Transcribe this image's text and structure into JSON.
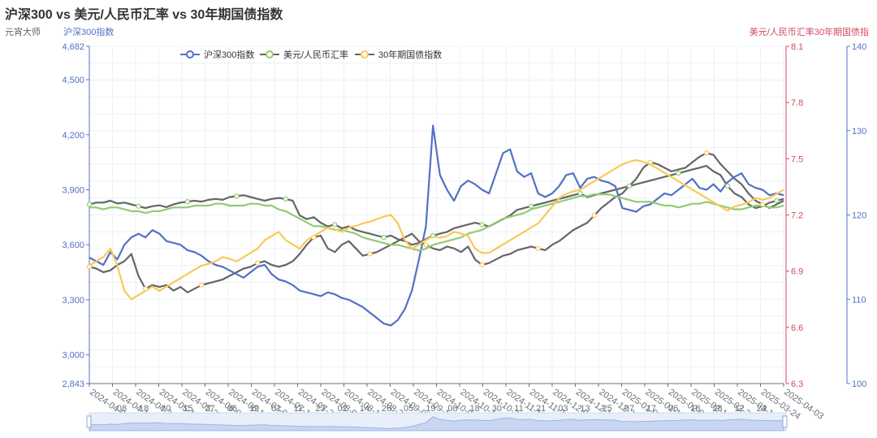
{
  "chart_data": {
    "type": "line",
    "title": "沪深300 vs 美元/人民币汇率 vs 30年期国债指数",
    "source_label": "元宵大师",
    "left_axis_name": "沪深300指数",
    "right_axis_name": "美元/人民币汇率30年期国债指",
    "legend": [
      "沪深300指数",
      "美元/人民币汇率",
      "30年期国债指数"
    ],
    "legend_position": "top-center",
    "grid": true,
    "y_left": {
      "min": 2843,
      "max": 4682,
      "ticks": [
        "2,843",
        "3,000",
        "3,300",
        "3,600",
        "3,900",
        "4,200",
        "4,500",
        "4,682"
      ],
      "tick_values": [
        2843,
        3000,
        3300,
        3600,
        3900,
        4200,
        4500,
        4682
      ]
    },
    "y_right1": {
      "min": 6.3,
      "max": 8.1,
      "ticks": [
        "6.3",
        "6.6",
        "6.9",
        "7.2",
        "7.5",
        "7.8",
        "8.1"
      ]
    },
    "y_right2": {
      "min": 100,
      "max": 140,
      "ticks": [
        "100",
        "110",
        "120",
        "130",
        "140"
      ]
    },
    "x_labels": [
      "2024-04-08",
      "2024-04-18",
      "2024-04-30",
      "2024-05-15",
      "2024-05-27",
      "2024-06-06",
      "2024-06-19",
      "2024-07-01",
      "2024-07-11",
      "2024-07-23",
      "2024-08-02",
      "2024-08-14",
      "2024-08-26",
      "2024-09-05",
      "2024-09-19",
      "2024-10-08",
      "2024-10-18",
      "2024-10-30",
      "2024-11-11",
      "2024-11-21",
      "2024-12-03",
      "2024-12-13",
      "2024-12-25",
      "2025-01-07",
      "2025-01-17",
      "2025-02-06",
      "2025-02-18",
      "2025-02-28",
      "2025-03-12",
      "2025-03-24",
      "2025-04-03"
    ],
    "slider_labels": [
      "08",
      "18",
      "30",
      "15",
      "27",
      "06",
      "19",
      "01",
      "11",
      "23",
      "02",
      "14",
      "26",
      "05",
      "19",
      "08",
      "18",
      "30",
      "11",
      "21",
      "03",
      "13",
      "25",
      "07",
      "17",
      "06",
      "18",
      "28",
      "12",
      "24"
    ],
    "colors": {
      "csi300": "#5470c6",
      "usdcny": "#91cc75",
      "bond30": "#fac858",
      "line_gray": "#666666",
      "right_axis1": "#d14a61",
      "right_axis2": "#5470c6",
      "left_axis": "#5470c6"
    },
    "series": [
      {
        "name": "沪深300指数",
        "axis": "left",
        "color": "#5470c6",
        "values": [
          3530,
          3510,
          3490,
          3560,
          3520,
          3600,
          3640,
          3660,
          3640,
          3680,
          3660,
          3620,
          3610,
          3600,
          3570,
          3560,
          3540,
          3510,
          3490,
          3480,
          3460,
          3440,
          3420,
          3450,
          3480,
          3490,
          3440,
          3410,
          3400,
          3380,
          3350,
          3340,
          3330,
          3320,
          3340,
          3330,
          3310,
          3300,
          3280,
          3260,
          3230,
          3200,
          3170,
          3160,
          3190,
          3250,
          3350,
          3520,
          3700,
          4250,
          3980,
          3900,
          3840,
          3920,
          3950,
          3930,
          3900,
          3880,
          3990,
          4100,
          4120,
          4000,
          3970,
          3990,
          3880,
          3860,
          3880,
          3920,
          3980,
          3990,
          3910,
          3960,
          3970,
          3950,
          3940,
          3920,
          3800,
          3790,
          3780,
          3810,
          3820,
          3850,
          3880,
          3870,
          3900,
          3930,
          3960,
          3910,
          3900,
          3930,
          3890,
          3940,
          3970,
          3990,
          3930,
          3910,
          3900,
          3870,
          3880,
          3870
        ]
      },
      {
        "name": "美元/人民币汇率",
        "axis": "right1",
        "color": "#91cc75",
        "values": [
          7.24,
          7.24,
          7.23,
          7.24,
          7.24,
          7.23,
          7.22,
          7.22,
          7.21,
          7.22,
          7.22,
          7.23,
          7.24,
          7.24,
          7.24,
          7.25,
          7.25,
          7.25,
          7.26,
          7.26,
          7.25,
          7.25,
          7.25,
          7.26,
          7.26,
          7.25,
          7.25,
          7.23,
          7.22,
          7.2,
          7.18,
          7.16,
          7.14,
          7.14,
          7.13,
          7.12,
          7.12,
          7.11,
          7.1,
          7.08,
          7.07,
          7.06,
          7.05,
          7.04,
          7.04,
          7.03,
          7.02,
          7.01,
          7.02,
          7.04,
          7.05,
          7.06,
          7.07,
          7.08,
          7.1,
          7.11,
          7.12,
          7.14,
          7.16,
          7.18,
          7.19,
          7.2,
          7.21,
          7.23,
          7.24,
          7.25,
          7.26,
          7.27,
          7.28,
          7.29,
          7.3,
          7.3,
          7.31,
          7.31,
          7.31,
          7.3,
          7.29,
          7.28,
          7.27,
          7.27,
          7.27,
          7.26,
          7.25,
          7.25,
          7.24,
          7.25,
          7.26,
          7.26,
          7.27,
          7.26,
          7.25,
          7.24,
          7.23,
          7.23,
          7.24,
          7.25,
          7.25,
          7.24,
          7.24,
          7.25
        ]
      },
      {
        "name": "30年期国债指数",
        "axis": "right2",
        "color": "#fac858",
        "values": [
          114,
          114.5,
          115,
          116,
          114,
          111,
          110,
          110.5,
          111,
          111.5,
          111,
          111.5,
          112,
          112.5,
          113,
          113.5,
          114,
          114.2,
          114.5,
          115,
          114.8,
          114.5,
          115,
          115.5,
          116,
          117,
          117.5,
          118,
          117,
          116.5,
          116,
          117,
          117.5,
          118,
          118.5,
          118.3,
          118,
          118.5,
          118.7,
          119,
          119.2,
          119.5,
          119.8,
          120,
          119,
          117,
          116,
          116.5,
          117,
          117.5,
          117.3,
          117.5,
          118,
          117.8,
          117.5,
          116,
          115.5,
          115.5,
          116,
          116.5,
          117,
          117.5,
          118,
          118.5,
          119,
          120,
          121,
          122,
          122.5,
          122.8,
          123,
          123.5,
          124,
          124.5,
          125,
          125.5,
          126,
          126.3,
          126.5,
          126.3,
          126,
          125.5,
          125,
          124.5,
          124,
          123.5,
          123,
          122.5,
          122,
          121.5,
          121,
          120.5,
          121,
          121.2,
          121.5,
          122,
          121.8,
          122,
          122.5,
          123
        ]
      }
    ],
    "gray_line_1": [
      3820,
      3830,
      3830,
      3840,
      3825,
      3830,
      3820,
      3810,
      3800,
      3810,
      3815,
      3805,
      3820,
      3830,
      3835,
      3840,
      3835,
      3845,
      3850,
      3845,
      3860,
      3865,
      3870,
      3860,
      3850,
      3840,
      3850,
      3855,
      3850,
      3840,
      3760,
      3740,
      3750,
      3720,
      3700,
      3710,
      3690,
      3700,
      3680,
      3670,
      3660,
      3650,
      3640,
      3650,
      3630,
      3620,
      3600,
      3610,
      3630,
      3650,
      3660,
      3670,
      3690,
      3700,
      3710,
      3720,
      3710,
      3700,
      3720,
      3740,
      3760,
      3790,
      3800,
      3810,
      3820,
      3830,
      3840,
      3850,
      3860,
      3870,
      3880,
      3860,
      3870,
      3880,
      3890,
      3900,
      3910,
      3920,
      3930,
      3940,
      3950,
      3960,
      3970,
      3980,
      3990,
      4000,
      4010,
      4020,
      4030,
      4000,
      3980,
      3920,
      3880,
      3860,
      3820,
      3800,
      3810,
      3830,
      3840,
      3850
    ],
    "gray_line_2": [
      3480,
      3470,
      3450,
      3460,
      3490,
      3510,
      3550,
      3430,
      3360,
      3380,
      3370,
      3380,
      3350,
      3370,
      3340,
      3360,
      3380,
      3390,
      3400,
      3410,
      3430,
      3450,
      3470,
      3480,
      3500,
      3510,
      3490,
      3480,
      3490,
      3510,
      3550,
      3600,
      3640,
      3650,
      3580,
      3560,
      3600,
      3620,
      3580,
      3540,
      3550,
      3560,
      3580,
      3600,
      3620,
      3640,
      3660,
      3620,
      3600,
      3580,
      3570,
      3590,
      3580,
      3560,
      3590,
      3520,
      3490,
      3500,
      3520,
      3540,
      3550,
      3570,
      3580,
      3590,
      3580,
      3570,
      3600,
      3620,
      3650,
      3680,
      3700,
      3720,
      3760,
      3800,
      3830,
      3860,
      3880,
      3920,
      3960,
      4020,
      4050,
      4040,
      4020,
      4000,
      4010,
      4020,
      4050,
      4080,
      4100,
      4090,
      4040,
      4000,
      3960,
      3930,
      3880,
      3840,
      3820,
      3800,
      3820,
      3840
    ]
  }
}
